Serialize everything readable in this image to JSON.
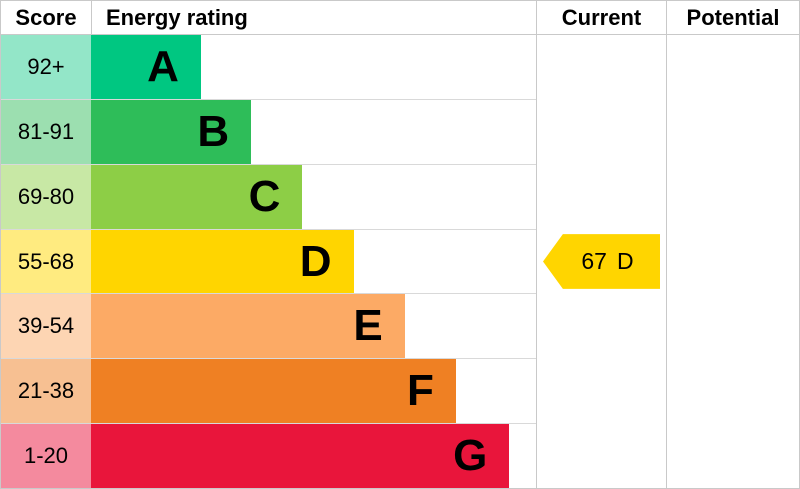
{
  "header": {
    "score_label": "Score",
    "rating_label": "Energy rating",
    "current_label": "Current",
    "potential_label": "Potential"
  },
  "chart_data": {
    "type": "bar",
    "title": "Energy rating",
    "categories": [
      "A",
      "B",
      "C",
      "D",
      "E",
      "F",
      "G"
    ],
    "values": [
      24.7,
      36.0,
      47.5,
      59.0,
      70.5,
      82.0,
      94.0
    ],
    "bands": [
      {
        "score_range": "92+",
        "letter": "A",
        "bar_color": "#00c781",
        "score_tint_color": "#93e6c8",
        "width_pct": 24.7
      },
      {
        "score_range": "81-91",
        "letter": "B",
        "bar_color": "#2ebd59",
        "score_tint_color": "#9cdfb0",
        "width_pct": 36.0
      },
      {
        "score_range": "69-80",
        "letter": "C",
        "bar_color": "#8dce46",
        "score_tint_color": "#c8e8a5",
        "width_pct": 47.5
      },
      {
        "score_range": "55-68",
        "letter": "D",
        "bar_color": "#ffd500",
        "score_tint_color": "#ffeb80",
        "width_pct": 59.0
      },
      {
        "score_range": "39-54",
        "letter": "E",
        "bar_color": "#fcaa65",
        "score_tint_color": "#fdd5b3",
        "width_pct": 70.5
      },
      {
        "score_range": "21-38",
        "letter": "F",
        "bar_color": "#ef8023",
        "score_tint_color": "#f7c092",
        "width_pct": 82.0
      },
      {
        "score_range": "1-20",
        "letter": "G",
        "bar_color": "#e9153b",
        "score_tint_color": "#f48a9e",
        "width_pct": 94.0
      }
    ],
    "current": {
      "value": "67",
      "band": "D",
      "arrow_color": "#ffd500",
      "row_index": 3
    },
    "potential": null
  }
}
